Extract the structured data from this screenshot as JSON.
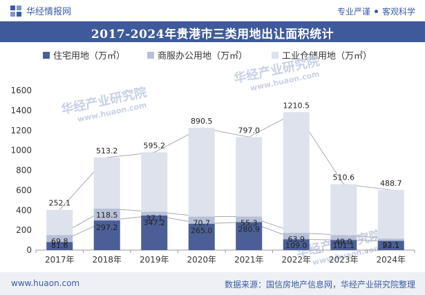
{
  "header": {
    "brand": "华经情报网",
    "tagline_left": "专业严谨",
    "tagline_right": "客观科学"
  },
  "footer": {
    "url": "www.huaon.com",
    "source": "数据来源：国信房地产信息网，华经产业研究院整理"
  },
  "watermark": {
    "text": "华经产业研究院",
    "url": "www.huaon.com"
  },
  "colors": {
    "residential": "#4b5f96",
    "commercial": "#b7c0d7",
    "industrial": "#dde2ed",
    "total_line": "#a9a9a9",
    "title_bg": "#3f5a9a",
    "brand": "#3b5ba5"
  },
  "chart_data": {
    "type": "bar",
    "stacked": true,
    "title": "2017-2024年贵港市三类用地出让面积统计",
    "categories": [
      "2017年",
      "2018年",
      "2019年",
      "2020年",
      "2021年",
      "2022年",
      "2023年",
      "2024年"
    ],
    "series": [
      {
        "name": "住宅用地（万㎡）",
        "values": [
          81.6,
          297.2,
          347.2,
          265.0,
          280.9,
          109.0,
          101.1,
          93.1
        ]
      },
      {
        "name": "商服办公用地（万㎡）",
        "values": [
          69.8,
          118.5,
          37.1,
          70.7,
          55.3,
          63.9,
          49.0,
          22.1
        ]
      },
      {
        "name": "工业仓储用地（万㎡）",
        "values": [
          252.1,
          513.2,
          595.2,
          890.5,
          797.0,
          1210.5,
          510.6,
          488.7
        ]
      }
    ],
    "ylim": [
      0,
      1600
    ],
    "yticks": [
      "0",
      "200",
      "400",
      "600",
      "800",
      "1000",
      "1200",
      "1400",
      "1600"
    ],
    "legend_position": "top",
    "grid": false
  }
}
